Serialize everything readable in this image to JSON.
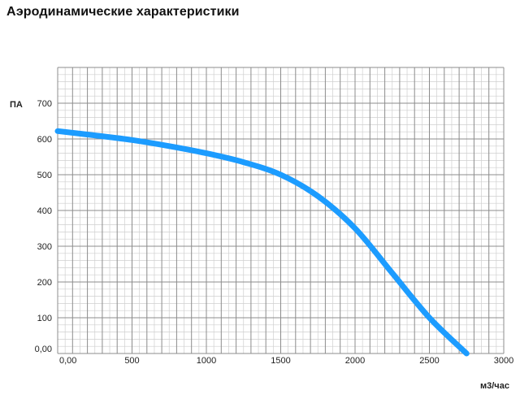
{
  "page": {
    "title": "Аэродинамические характеристики"
  },
  "colors": {
    "curve": "#1c9cff",
    "grid_minor": "#cfcfcf",
    "grid_major": "#8c8c8c",
    "text": "#222222"
  },
  "chart_data": {
    "type": "line",
    "title": "",
    "xlabel": "м3/час",
    "ylabel": "ПА",
    "xlim": [
      0,
      3000
    ],
    "ylim": [
      0,
      800
    ],
    "grid": true,
    "x_major_step": 100,
    "x_minor_step": 50,
    "y_major_step": 100,
    "y_minor_step": 20,
    "x_tick_labels": [
      {
        "value": 0,
        "label": "0,00"
      },
      {
        "value": 500,
        "label": "500"
      },
      {
        "value": 1000,
        "label": "1000"
      },
      {
        "value": 1500,
        "label": "1500"
      },
      {
        "value": 2000,
        "label": "2000"
      },
      {
        "value": 2500,
        "label": "2500"
      },
      {
        "value": 3000,
        "label": "3000"
      }
    ],
    "y_tick_labels": [
      {
        "value": 0,
        "label": "0,00"
      },
      {
        "value": 100,
        "label": "100"
      },
      {
        "value": 200,
        "label": "200"
      },
      {
        "value": 300,
        "label": "300"
      },
      {
        "value": 400,
        "label": "400"
      },
      {
        "value": 500,
        "label": "500"
      },
      {
        "value": 600,
        "label": "600"
      },
      {
        "value": 700,
        "label": "700"
      }
    ],
    "series": [
      {
        "x": [
          0,
          250,
          500,
          750,
          1000,
          1250,
          1500,
          1750,
          2000,
          2250,
          2500,
          2750
        ],
        "y": [
          622,
          610,
          597,
          580,
          560,
          535,
          500,
          440,
          350,
          225,
          100,
          0
        ]
      }
    ]
  }
}
